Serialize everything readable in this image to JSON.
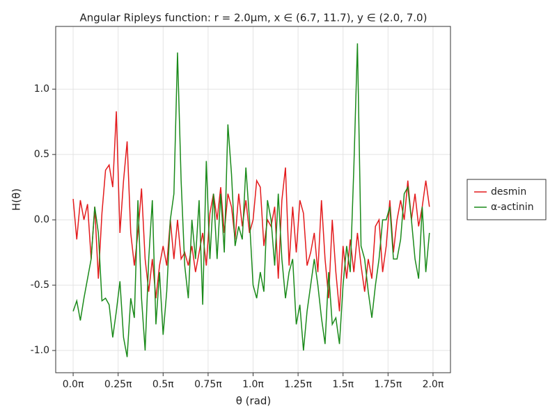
{
  "chart_data": {
    "type": "line",
    "title": "Angular Ripleys function: r = 2.0μm, x ∈ (6.7, 11.7), y ∈ (2.0, 7.0)",
    "x_label": "θ (rad)",
    "y_label": "H(θ)",
    "x": [
      0,
      0.02,
      0.04,
      0.06,
      0.08,
      0.1,
      0.12,
      0.14,
      0.16,
      0.18,
      0.2,
      0.22,
      0.24,
      0.26,
      0.28,
      0.3,
      0.32,
      0.34,
      0.36,
      0.38,
      0.4,
      0.42,
      0.44,
      0.46,
      0.48,
      0.5,
      0.52,
      0.54,
      0.56,
      0.58,
      0.6,
      0.62,
      0.64,
      0.66,
      0.68,
      0.7,
      0.72,
      0.74,
      0.76,
      0.78,
      0.8,
      0.82,
      0.84,
      0.86,
      0.88,
      0.9,
      0.92,
      0.94,
      0.96,
      0.98,
      1.0,
      1.02,
      1.04,
      1.06,
      1.08,
      1.1,
      1.12,
      1.14,
      1.16,
      1.18,
      1.2,
      1.22,
      1.24,
      1.26,
      1.28,
      1.3,
      1.32,
      1.34,
      1.36,
      1.38,
      1.4,
      1.42,
      1.44,
      1.46,
      1.48,
      1.5,
      1.52,
      1.54,
      1.56,
      1.58,
      1.6,
      1.62,
      1.64,
      1.66,
      1.68,
      1.7,
      1.72,
      1.74,
      1.76,
      1.78,
      1.8,
      1.82,
      1.84,
      1.86,
      1.88,
      1.9,
      1.92,
      1.94,
      1.96,
      1.98
    ],
    "series": [
      {
        "name": "desmin",
        "color": "#e31a1c",
        "values": [
          0.16,
          -0.15,
          0.15,
          0.0,
          0.12,
          -0.3,
          0.1,
          -0.45,
          0.05,
          0.38,
          0.42,
          0.25,
          0.83,
          -0.1,
          0.3,
          0.6,
          -0.1,
          -0.35,
          -0.1,
          0.24,
          -0.3,
          -0.55,
          -0.3,
          -0.6,
          -0.35,
          -0.2,
          -0.35,
          0.0,
          -0.3,
          0.0,
          -0.3,
          -0.25,
          -0.35,
          -0.2,
          -0.4,
          -0.25,
          -0.1,
          -0.35,
          0.05,
          0.2,
          0.0,
          0.25,
          -0.1,
          0.2,
          0.1,
          -0.15,
          0.2,
          -0.05,
          0.15,
          -0.1,
          0.0,
          0.3,
          0.25,
          -0.2,
          0.0,
          -0.05,
          0.1,
          -0.45,
          0.15,
          0.4,
          -0.35,
          0.1,
          -0.25,
          0.15,
          0.05,
          -0.35,
          -0.25,
          -0.1,
          -0.4,
          0.15,
          -0.3,
          -0.6,
          0.0,
          -0.4,
          -0.7,
          -0.2,
          -0.45,
          -0.15,
          -0.4,
          -0.1,
          -0.35,
          -0.55,
          -0.3,
          -0.45,
          -0.05,
          0.0,
          -0.4,
          -0.2,
          0.15,
          -0.25,
          0.0,
          0.15,
          0.0,
          0.3,
          0.0,
          0.2,
          -0.05,
          0.1,
          0.3,
          0.1
        ]
      },
      {
        "name": "α-actinin",
        "color": "#1a8a1a",
        "values": [
          -0.7,
          -0.62,
          -0.77,
          -0.6,
          -0.45,
          -0.3,
          0.1,
          -0.1,
          -0.62,
          -0.6,
          -0.65,
          -0.9,
          -0.7,
          -0.47,
          -0.9,
          -1.05,
          -0.6,
          -0.75,
          0.15,
          -0.6,
          -1.0,
          -0.3,
          0.15,
          -0.8,
          -0.4,
          -0.88,
          -0.55,
          0.0,
          0.2,
          1.28,
          0.3,
          -0.35,
          -0.6,
          0.0,
          -0.3,
          0.15,
          -0.65,
          0.45,
          -0.3,
          0.2,
          -0.3,
          0.2,
          -0.25,
          0.73,
          0.35,
          -0.2,
          -0.05,
          -0.15,
          0.4,
          0.0,
          -0.5,
          -0.6,
          -0.4,
          -0.55,
          0.15,
          0.0,
          -0.35,
          0.2,
          -0.3,
          -0.6,
          -0.4,
          -0.3,
          -0.8,
          -0.65,
          -1.0,
          -0.7,
          -0.5,
          -0.3,
          -0.5,
          -0.75,
          -0.95,
          -0.4,
          -0.8,
          -0.75,
          -0.95,
          -0.5,
          -0.2,
          -0.4,
          0.4,
          1.35,
          -0.2,
          -0.3,
          -0.55,
          -0.75,
          -0.5,
          -0.3,
          0.0,
          0.0,
          0.1,
          -0.3,
          -0.3,
          -0.15,
          0.2,
          0.25,
          0.0,
          -0.3,
          -0.45,
          0.1,
          -0.4,
          -0.1
        ]
      }
    ],
    "xlim": [
      -0.097,
      2.097
    ],
    "ylim": [
      -1.17,
      1.48
    ],
    "xticks": [
      {
        "value": 0,
        "label": "0.0π"
      },
      {
        "value": 0.25,
        "label": "0.25π"
      },
      {
        "value": 0.5,
        "label": "0.5π"
      },
      {
        "value": 0.75,
        "label": "0.75π"
      },
      {
        "value": 1,
        "label": "1.0π"
      },
      {
        "value": 1.25,
        "label": "1.25π"
      },
      {
        "value": 1.5,
        "label": "1.5π"
      },
      {
        "value": 1.75,
        "label": "1.75π"
      },
      {
        "value": 2,
        "label": "2.0π"
      }
    ],
    "yticks": [
      {
        "value": -1,
        "label": "-1.0"
      },
      {
        "value": -0.5,
        "label": "-0.5"
      },
      {
        "value": 0,
        "label": "0.0"
      },
      {
        "value": 0.5,
        "label": "0.5"
      },
      {
        "value": 1,
        "label": "1.0"
      }
    ],
    "grid": true,
    "legend": "right"
  }
}
